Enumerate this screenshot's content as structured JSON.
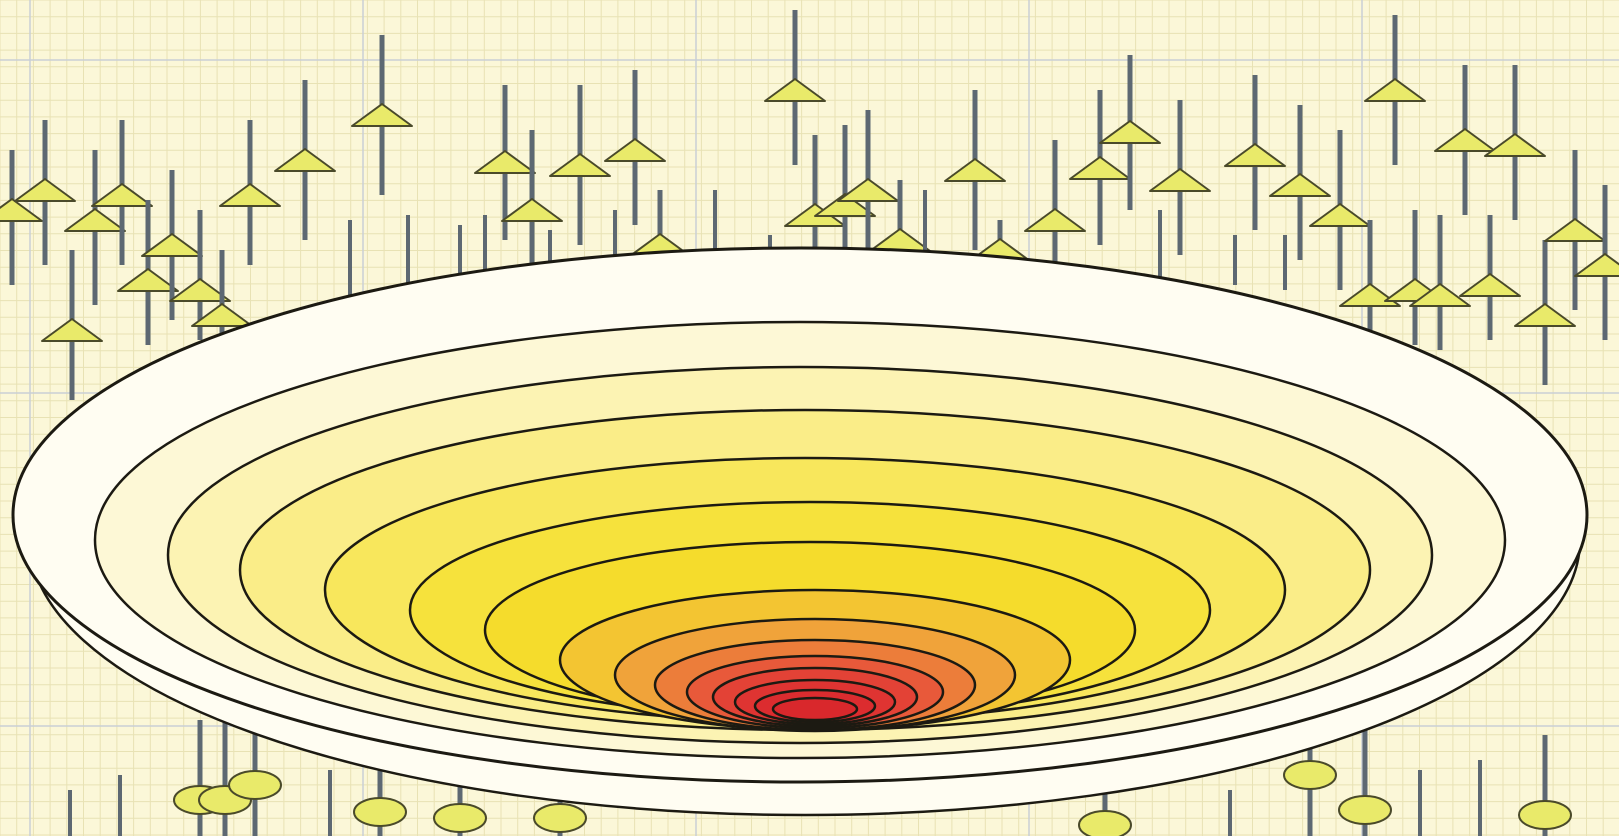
{
  "colors": {
    "background": "#fbf7d8",
    "grid_minor": "#e8e2b4",
    "grid_major": "#c9cfd6",
    "stick": "#5d6872",
    "marker_fill": "#e9ea6a",
    "marker_stroke": "#4a4a2a",
    "contour_stroke": "#1c1a12",
    "contour_levels": [
      "#fffdf2",
      "#fdf8d6",
      "#fcf3b3",
      "#faed88",
      "#f8e75c",
      "#f6e23c",
      "#f5dc2c",
      "#f3c532",
      "#f0a33a",
      "#ec7d3a",
      "#e8593a",
      "#e34236",
      "#df3432",
      "#dc2c2f",
      "#d9282c"
    ]
  },
  "markers": {
    "top_shape": "triangle",
    "bottom_shape": "ellipse"
  }
}
